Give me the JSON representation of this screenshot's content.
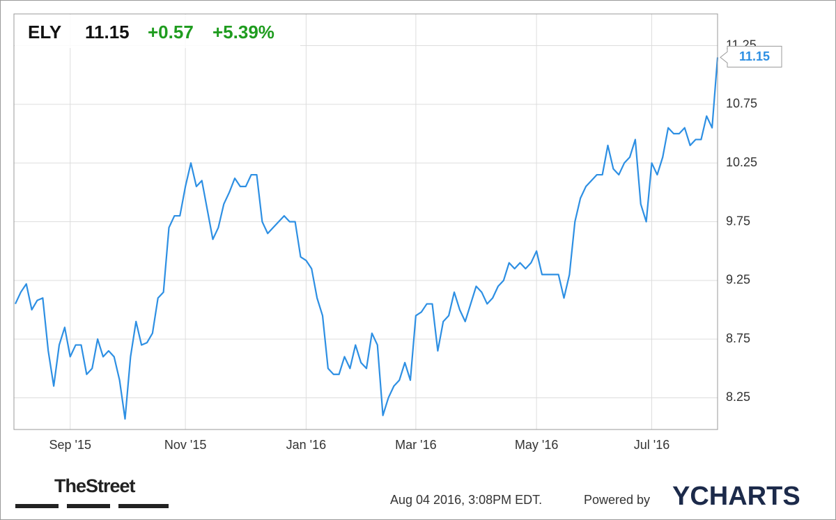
{
  "chart_data": {
    "type": "line",
    "header": {
      "ticker": "ELY",
      "price": 11.15,
      "change": "+0.57",
      "change_pct": "+5.39%"
    },
    "categories": [
      null,
      null,
      null,
      null,
      null,
      null,
      null,
      null,
      null,
      null,
      "Sep '15",
      null,
      null,
      null,
      null,
      null,
      null,
      null,
      null,
      null,
      null,
      null,
      null,
      null,
      null,
      null,
      null,
      null,
      null,
      null,
      null,
      "Nov '15",
      null,
      null,
      null,
      null,
      null,
      null,
      null,
      null,
      null,
      null,
      null,
      null,
      null,
      null,
      null,
      null,
      null,
      null,
      null,
      null,
      null,
      "Jan '16",
      null,
      null,
      null,
      null,
      null,
      null,
      null,
      null,
      null,
      null,
      null,
      null,
      null,
      null,
      null,
      null,
      null,
      null,
      null,
      "Mar '16",
      null,
      null,
      null,
      null,
      null,
      null,
      null,
      null,
      null,
      null,
      null,
      null,
      null,
      null,
      null,
      null,
      null,
      null,
      null,
      null,
      null,
      "May '16",
      null,
      null,
      null,
      null,
      null,
      null,
      null,
      null,
      null,
      null,
      null,
      null,
      null,
      null,
      null,
      null,
      null,
      null,
      null,
      null,
      "Jul '16",
      null,
      null,
      null,
      null,
      null,
      null,
      null,
      null,
      null,
      null,
      null,
      null
    ],
    "values": [
      9.05,
      9.15,
      9.22,
      9.0,
      9.08,
      9.1,
      8.65,
      8.35,
      8.7,
      8.85,
      8.6,
      8.7,
      8.7,
      8.45,
      8.5,
      8.75,
      8.6,
      8.65,
      8.6,
      8.4,
      8.07,
      8.6,
      8.9,
      8.7,
      8.72,
      8.8,
      9.1,
      9.15,
      9.7,
      9.8,
      9.8,
      10.05,
      10.25,
      10.05,
      10.1,
      9.85,
      9.6,
      9.7,
      9.9,
      10.0,
      10.12,
      10.05,
      10.05,
      10.15,
      10.15,
      9.75,
      9.65,
      9.7,
      9.75,
      9.8,
      9.75,
      9.75,
      9.45,
      9.42,
      9.35,
      9.1,
      8.95,
      8.5,
      8.45,
      8.45,
      8.6,
      8.5,
      8.7,
      8.55,
      8.5,
      8.8,
      8.7,
      8.1,
      8.25,
      8.35,
      8.4,
      8.55,
      8.4,
      8.95,
      8.98,
      9.05,
      9.05,
      8.65,
      8.9,
      8.95,
      9.15,
      9.0,
      8.9,
      9.05,
      9.2,
      9.15,
      9.05,
      9.1,
      9.2,
      9.25,
      9.4,
      9.35,
      9.4,
      9.35,
      9.4,
      9.5,
      9.3,
      9.3,
      9.3,
      9.3,
      9.1,
      9.3,
      9.75,
      9.95,
      10.05,
      10.1,
      10.15,
      10.15,
      10.4,
      10.2,
      10.15,
      10.25,
      10.3,
      10.45,
      9.9,
      9.75,
      10.25,
      10.15,
      10.3,
      10.55,
      10.5,
      10.5,
      10.55,
      10.4,
      10.45,
      10.45,
      10.65,
      10.55,
      11.15
    ],
    "color": "#2d8fe3",
    "ylim": [
      7.98,
      11.52
    ],
    "yticks": [
      8.25,
      8.75,
      9.25,
      9.75,
      10.25,
      10.75,
      11.25
    ],
    "grid": true,
    "footer": {
      "brand": "TheStreet",
      "timestamp": "Aug 04 2016, 3:08PM EDT.",
      "powered": "Powered by",
      "provider": "YCHARTS"
    }
  }
}
